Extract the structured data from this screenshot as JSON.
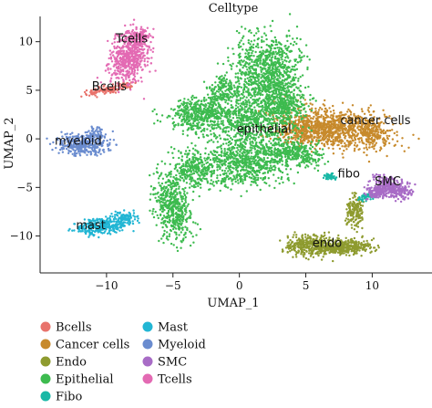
{
  "chart_data": {
    "type": "scatter",
    "title": "Celltype",
    "xlabel": "UMAP_1",
    "ylabel": "UMAP_2",
    "xlim": [
      -15,
      14.5
    ],
    "ylim": [
      -13.8,
      12.6
    ],
    "xticks": [
      -10,
      -5,
      0,
      5,
      10
    ],
    "yticks": [
      -10,
      -5,
      0,
      5,
      10
    ],
    "grid": false,
    "legend_position": "bottom",
    "clusters": [
      {
        "name": "Bcells",
        "color": "#E8736C",
        "label": "Bcells",
        "label_at": [
          -11.1,
          5.0
        ],
        "shapes": [
          {
            "cx": -10.0,
            "cy": 5.0,
            "rx": 1.6,
            "ry": 0.35,
            "rot": 12,
            "n": 120
          },
          {
            "cx": -8.5,
            "cy": 5.5,
            "rx": 0.6,
            "ry": 0.3,
            "rot": 0,
            "n": 30
          }
        ]
      },
      {
        "name": "Cancer cells",
        "color": "#C78A2C",
        "label": "cancer cells",
        "label_at": [
          7.6,
          1.5
        ],
        "shapes": [
          {
            "cx": 7.2,
            "cy": 1.1,
            "rx": 3.8,
            "ry": 1.8,
            "rot": -10,
            "n": 900
          },
          {
            "cx": 5.0,
            "cy": 0.8,
            "rx": 2.2,
            "ry": 1.2,
            "rot": 0,
            "n": 300
          },
          {
            "cx": 10.0,
            "cy": 0.8,
            "rx": 1.0,
            "ry": 1.3,
            "rot": 0,
            "n": 120
          }
        ]
      },
      {
        "name": "Endo",
        "color": "#8E9B2F",
        "label": "endo",
        "label_at": [
          5.5,
          -11.1
        ],
        "shapes": [
          {
            "cx": 5.4,
            "cy": -11.0,
            "rx": 1.7,
            "ry": 1.0,
            "rot": 0,
            "n": 350
          },
          {
            "cx": 8.3,
            "cy": -11.1,
            "rx": 1.5,
            "ry": 0.7,
            "rot": 0,
            "n": 250
          },
          {
            "cx": 8.7,
            "cy": -7.5,
            "rx": 0.6,
            "ry": 1.6,
            "rot": 0,
            "n": 150
          },
          {
            "cx": 6.8,
            "cy": -11.3,
            "rx": 1.2,
            "ry": 0.35,
            "rot": 0,
            "n": 80
          }
        ]
      },
      {
        "name": "Epithelial",
        "color": "#3DBB4F",
        "label": "epithelial",
        "label_at": [
          -0.2,
          0.6
        ],
        "shapes": [
          {
            "cx": 2.0,
            "cy": 6.8,
            "rx": 2.2,
            "ry": 3.5,
            "rot": 0,
            "n": 900
          },
          {
            "cx": 1.0,
            "cy": 2.0,
            "rx": 3.0,
            "ry": 2.5,
            "rot": 0,
            "n": 700
          },
          {
            "cx": -3.0,
            "cy": 2.5,
            "rx": 2.2,
            "ry": 1.5,
            "rot": 20,
            "n": 450
          },
          {
            "cx": -5.0,
            "cy": -7.0,
            "rx": 1.2,
            "ry": 3.2,
            "rot": 8,
            "n": 500
          },
          {
            "cx": -3.5,
            "cy": -3.0,
            "rx": 1.2,
            "ry": 2.0,
            "rot": 10,
            "n": 250
          },
          {
            "cx": 0.4,
            "cy": -2.5,
            "rx": 2.8,
            "ry": 2.2,
            "rot": 0,
            "n": 700
          },
          {
            "cx": 4.0,
            "cy": -1.5,
            "rx": 2.0,
            "ry": 1.2,
            "rot": -10,
            "n": 350
          },
          {
            "cx": 3.5,
            "cy": 3.8,
            "rx": 1.5,
            "ry": 1.6,
            "rot": 0,
            "n": 250
          },
          {
            "cx": -1.2,
            "cy": 5.0,
            "rx": 1.0,
            "ry": 1.2,
            "rot": 0,
            "n": 150
          }
        ]
      },
      {
        "name": "Fibo",
        "color": "#19B8A6",
        "label": "fibo",
        "label_at": [
          7.4,
          -4.0
        ],
        "shapes": [
          {
            "cx": 6.8,
            "cy": -3.9,
            "rx": 0.45,
            "ry": 0.3,
            "rot": 0,
            "n": 40
          },
          {
            "cx": 9.5,
            "cy": -6.0,
            "rx": 0.5,
            "ry": 0.35,
            "rot": 0,
            "n": 40
          }
        ]
      },
      {
        "name": "Mast",
        "color": "#22B6D4",
        "label": "mast",
        "label_at": [
          -12.3,
          -9.3
        ],
        "shapes": [
          {
            "cx": -10.4,
            "cy": -9.0,
            "rx": 1.7,
            "ry": 0.7,
            "rot": 10,
            "n": 300
          },
          {
            "cx": -8.7,
            "cy": -8.2,
            "rx": 0.9,
            "ry": 0.6,
            "rot": 0,
            "n": 100
          }
        ]
      },
      {
        "name": "Myeloid",
        "color": "#6A8CCF",
        "label": "myeloid",
        "label_at": [
          -13.9,
          -0.6
        ],
        "shapes": [
          {
            "cx": -11.8,
            "cy": -0.6,
            "rx": 1.7,
            "ry": 1.0,
            "rot": 0,
            "n": 350
          },
          {
            "cx": -10.8,
            "cy": 0.5,
            "rx": 0.6,
            "ry": 0.7,
            "rot": 0,
            "n": 60
          }
        ]
      },
      {
        "name": "SMC",
        "color": "#A86CC6",
        "label": "SMC",
        "label_at": [
          10.2,
          -4.8
        ],
        "shapes": [
          {
            "cx": 11.5,
            "cy": -5.0,
            "rx": 1.4,
            "ry": 0.8,
            "rot": -25,
            "n": 300
          },
          {
            "cx": 10.3,
            "cy": -5.5,
            "rx": 0.8,
            "ry": 0.6,
            "rot": 0,
            "n": 120
          }
        ]
      },
      {
        "name": "Tcells",
        "color": "#E36AB3",
        "label": "Tcells",
        "label_at": [
          -9.3,
          9.9
        ],
        "shapes": [
          {
            "cx": -8.3,
            "cy": 8.3,
            "rx": 1.3,
            "ry": 2.3,
            "rot": -8,
            "n": 550
          },
          {
            "cx": -7.5,
            "cy": 10.5,
            "rx": 0.8,
            "ry": 0.8,
            "rot": 0,
            "n": 120
          }
        ]
      }
    ]
  }
}
